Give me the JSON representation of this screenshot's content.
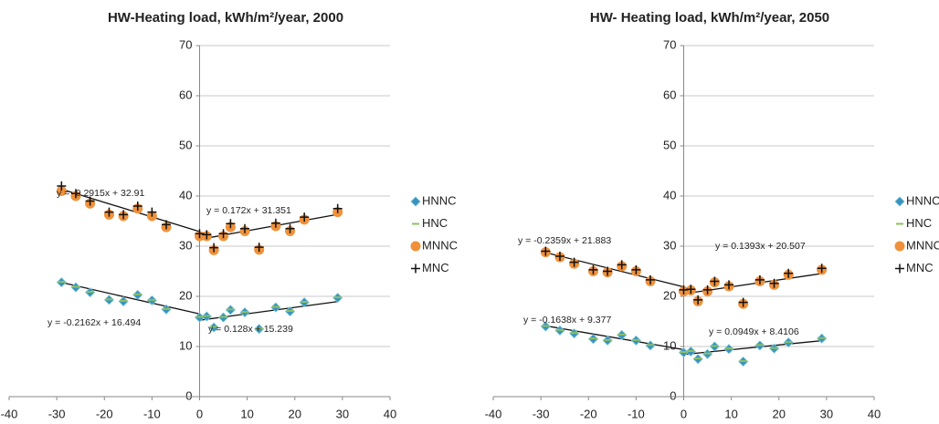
{
  "chart_data": [
    {
      "type": "scatter",
      "title": "HW-Heating load, kWh/m²/year, 2000",
      "x": [
        -29,
        -26,
        -23,
        -19,
        -16,
        -13,
        -10,
        -7,
        0,
        1.5,
        3,
        5,
        6.5,
        9.5,
        12.5,
        16,
        19,
        22,
        29
      ],
      "series": [
        {
          "name": "HNNC",
          "color": "#3a92bd",
          "marker": "diamond",
          "values": [
            22.8,
            21.8,
            20.8,
            19.3,
            19,
            20.3,
            19.2,
            17.4,
            15.8,
            16,
            13.8,
            15.8,
            17.3,
            16.8,
            13.5,
            17.8,
            17,
            18.8,
            19.7
          ]
        },
        {
          "name": "HNC",
          "color": "#8cc063",
          "marker": "dash",
          "values": [
            22.9,
            21.9,
            20.9,
            19.4,
            19.1,
            20.4,
            19.3,
            17.5,
            15.9,
            16.1,
            13.9,
            15.9,
            17.4,
            16.9,
            13.6,
            17.9,
            17.1,
            18.9,
            19.8
          ]
        },
        {
          "name": "MNNC",
          "color": "#f0913a",
          "marker": "circle",
          "values": [
            41,
            40,
            38.5,
            36.3,
            36,
            37.5,
            36,
            33.8,
            32,
            32,
            29.2,
            32,
            33.8,
            33,
            29.3,
            34,
            33,
            35.3,
            36.8
          ]
        },
        {
          "name": "MNC",
          "color": "#111111",
          "marker": "plus",
          "values": [
            42,
            40.5,
            39,
            36.8,
            36.3,
            38,
            36.8,
            34.3,
            32.5,
            32.3,
            29.7,
            32.5,
            34.5,
            33.5,
            29.8,
            34.6,
            33.5,
            35.8,
            37.5
          ]
        }
      ],
      "trendlines": [
        {
          "label": "y = -0.2915x + 32.91",
          "slope": -0.2915,
          "intercept": 32.91,
          "x_range": [
            -29,
            0
          ]
        },
        {
          "label": "y = 0.172x + 31.351",
          "slope": 0.172,
          "intercept": 31.351,
          "x_range": [
            0,
            29
          ]
        },
        {
          "label": "y = -0.2162x + 16.494",
          "slope": -0.2162,
          "intercept": 16.494,
          "x_range": [
            -29,
            0
          ]
        },
        {
          "label": "y = 0.128x + 15.239",
          "slope": 0.128,
          "intercept": 15.239,
          "x_range": [
            0,
            29
          ]
        }
      ],
      "xlim": [
        -40,
        40
      ],
      "xticks": [
        -40,
        -30,
        -20,
        -10,
        0,
        10,
        20,
        30,
        40
      ],
      "ylim": [
        0,
        70
      ],
      "yticks": [
        0,
        10,
        20,
        30,
        40,
        50,
        60,
        70
      ],
      "grid": true,
      "legend": "right"
    },
    {
      "type": "scatter",
      "title": "HW- Heating load, kWh/m²/year, 2050",
      "x": [
        -29,
        -26,
        -23,
        -19,
        -16,
        -13,
        -10,
        -7,
        0,
        1.5,
        3,
        5,
        6.5,
        9.5,
        12.5,
        16,
        19,
        22,
        29
      ],
      "series": [
        {
          "name": "HNNC",
          "color": "#3a92bd",
          "marker": "diamond",
          "values": [
            14,
            13.2,
            12.6,
            11.5,
            11.2,
            12.3,
            11.2,
            10.2,
            8.8,
            9,
            7.5,
            8.5,
            10,
            9.5,
            7,
            10.2,
            9.6,
            10.8,
            11.6
          ]
        },
        {
          "name": "HNC",
          "color": "#8cc063",
          "marker": "dash",
          "values": [
            14.1,
            13.3,
            12.7,
            11.6,
            11.3,
            12.4,
            11.3,
            10.3,
            8.9,
            9.1,
            7.6,
            8.6,
            10.1,
            9.6,
            7.1,
            10.3,
            9.7,
            10.9,
            11.7
          ]
        },
        {
          "name": "MNNC",
          "color": "#f0913a",
          "marker": "circle",
          "values": [
            28.8,
            27.8,
            26.5,
            25,
            24.8,
            26,
            25,
            23,
            21,
            21.2,
            19,
            21,
            22.8,
            22,
            18.5,
            23,
            22.3,
            24.3,
            25.3
          ]
        },
        {
          "name": "MNC",
          "color": "#111111",
          "marker": "plus",
          "values": [
            29,
            28,
            26.8,
            25.3,
            25,
            26.3,
            25.3,
            23.3,
            21.3,
            21.4,
            19.3,
            21.3,
            23,
            22.3,
            18.8,
            23.3,
            22.6,
            24.6,
            25.6
          ]
        }
      ],
      "trendlines": [
        {
          "label": "y = -0.2359x + 21.883",
          "slope": -0.2359,
          "intercept": 21.883,
          "x_range": [
            -29,
            0
          ]
        },
        {
          "label": "y = 0.1393x + 20.507",
          "slope": 0.1393,
          "intercept": 20.507,
          "x_range": [
            0,
            29
          ]
        },
        {
          "label": "y = -0.1638x + 9.377",
          "slope": -0.1638,
          "intercept": 9.377,
          "x_range": [
            -29,
            0
          ]
        },
        {
          "label": "y = 0.0949x + 8.4106",
          "slope": 0.0949,
          "intercept": 8.4106,
          "x_range": [
            0,
            29
          ]
        }
      ],
      "xlim": [
        -40,
        40
      ],
      "xticks": [
        -40,
        -30,
        -20,
        -10,
        0,
        10,
        20,
        30,
        40
      ],
      "ylim": [
        0,
        70
      ],
      "yticks": [
        0,
        10,
        20,
        30,
        40,
        50,
        60,
        70
      ],
      "grid": true,
      "legend": "right"
    }
  ]
}
